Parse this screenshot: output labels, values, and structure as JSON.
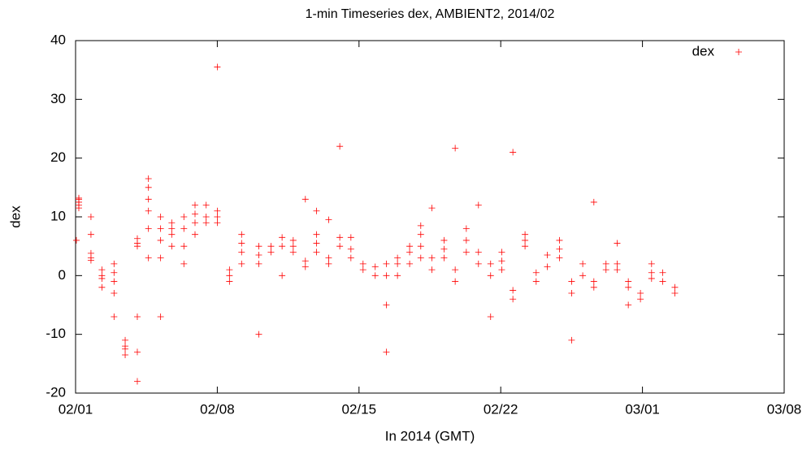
{
  "chart_data": {
    "type": "scatter",
    "title": "1-min Timeseries dex, AMBIENT2, 2014/02",
    "x_label": "In 2014 (GMT)",
    "y_label": "dex",
    "xlim": [
      0,
      35
    ],
    "ylim": [
      -20,
      40
    ],
    "xticks": [
      {
        "value": 0,
        "label": "02/01"
      },
      {
        "value": 7,
        "label": "02/08"
      },
      {
        "value": 14,
        "label": "02/15"
      },
      {
        "value": 21,
        "label": "02/22"
      },
      {
        "value": 28,
        "label": "03/01"
      },
      {
        "value": 35,
        "label": "03/08"
      }
    ],
    "yticks": [
      -20,
      -10,
      0,
      10,
      20,
      30,
      40
    ],
    "legend": "upper right",
    "x": [
      0.16,
      0.16,
      0.16,
      0.16,
      0.16,
      0.04,
      0.76,
      0.76,
      0.76,
      0.76,
      0.76,
      1.3,
      1.3,
      1.3,
      1.3,
      1.9,
      1.9,
      1.9,
      1.9,
      1.9,
      2.45,
      2.45,
      2.45,
      2.45,
      3.05,
      3.05,
      3.05,
      3.05,
      3.05,
      3.05,
      3.6,
      3.6,
      3.6,
      3.6,
      3.6,
      3.6,
      4.2,
      4.2,
      4.2,
      4.2,
      4.2,
      4.75,
      4.75,
      4.75,
      4.75,
      5.35,
      5.35,
      5.35,
      5.35,
      5.9,
      5.9,
      5.9,
      5.9,
      6.45,
      6.45,
      6.45,
      7.0,
      7.0,
      7.0,
      7.0,
      7.6,
      7.6,
      7.6,
      8.2,
      8.2,
      8.2,
      8.2,
      9.05,
      9.05,
      9.05,
      9.05,
      9.65,
      9.65,
      10.2,
      10.2,
      10.2,
      10.75,
      10.75,
      10.75,
      11.35,
      11.35,
      11.35,
      11.9,
      11.9,
      11.9,
      11.9,
      12.5,
      12.5,
      12.5,
      13.05,
      13.05,
      13.05,
      13.6,
      13.6,
      13.6,
      14.2,
      14.2,
      14.8,
      14.8,
      15.35,
      15.35,
      15.35,
      15.35,
      15.9,
      15.9,
      15.9,
      16.5,
      16.5,
      16.5,
      17.05,
      17.05,
      17.05,
      17.05,
      17.6,
      17.6,
      17.6,
      18.2,
      18.2,
      18.2,
      18.75,
      18.75,
      18.75,
      19.3,
      19.3,
      19.3,
      19.9,
      19.9,
      19.9,
      20.5,
      20.5,
      20.5,
      21.05,
      21.05,
      21.05,
      21.6,
      21.6,
      21.6,
      22.2,
      22.2,
      22.2,
      22.75,
      22.75,
      23.3,
      23.3,
      23.9,
      23.9,
      23.9,
      24.5,
      24.5,
      24.5,
      25.05,
      25.05,
      25.6,
      25.6,
      25.6,
      26.2,
      26.2,
      26.75,
      26.75,
      26.75,
      27.3,
      27.3,
      27.3,
      27.9,
      27.9,
      28.45,
      28.45,
      28.45,
      29.0,
      29.0,
      29.6,
      29.6
    ],
    "series": [
      {
        "name": "dex",
        "color": "#ff0000",
        "values": [
          12.5,
          13.2,
          11.5,
          12,
          13,
          6,
          3,
          3.8,
          2.6,
          10,
          7,
          -2,
          -0.5,
          1,
          0,
          -3,
          -1,
          0.5,
          2,
          -7,
          -11,
          -12,
          -13.5,
          -12.5,
          5,
          6.3,
          5.5,
          -7,
          -13,
          -18,
          11,
          13,
          15,
          16.5,
          3,
          8,
          3,
          6,
          8,
          10,
          -7,
          5,
          7,
          8,
          9,
          2,
          5,
          8,
          10,
          7,
          9,
          10.5,
          12,
          9,
          10,
          12,
          9,
          10,
          11,
          35.5,
          -1,
          0,
          1,
          2,
          4,
          5.5,
          7,
          2,
          3.5,
          5,
          -10,
          4,
          5,
          5,
          6.5,
          0,
          4,
          5,
          6,
          1.5,
          2.5,
          13,
          4,
          5.5,
          7,
          11,
          2,
          3,
          9.5,
          5,
          6.5,
          22,
          3,
          4.5,
          6.5,
          1,
          2,
          0,
          1.5,
          0,
          2,
          -5,
          -13,
          0,
          2,
          3,
          2,
          4,
          5,
          3,
          5,
          7,
          8.5,
          1,
          3,
          11.5,
          3,
          4.5,
          6,
          -1,
          1,
          21.7,
          4,
          6,
          8,
          2,
          4,
          12,
          0,
          2,
          -7,
          1,
          2.5,
          4,
          -4,
          -2.5,
          21,
          5,
          6,
          7,
          -1,
          0.5,
          1.5,
          3.5,
          3,
          4.5,
          6,
          -3,
          -1,
          -11,
          0,
          2,
          -2,
          -1,
          12.5,
          1,
          2,
          1,
          2,
          5.5,
          -2,
          -1,
          -5,
          -4,
          -3,
          -0.5,
          0.5,
          2,
          -1,
          0.5,
          -3,
          -2
        ]
      }
    ]
  }
}
